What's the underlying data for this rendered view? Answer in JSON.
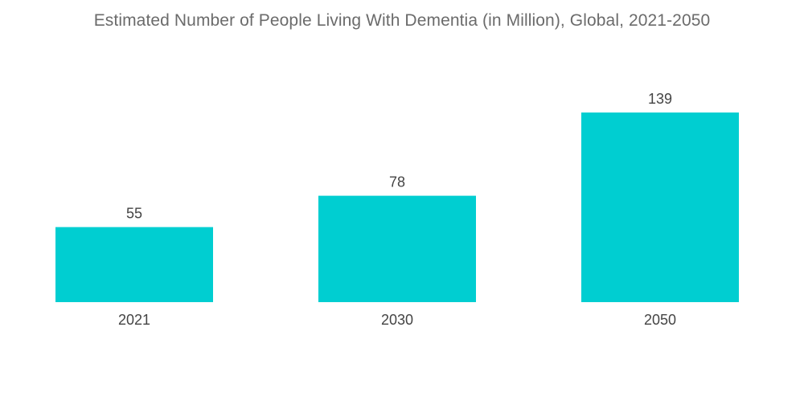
{
  "chart_data": {
    "type": "bar",
    "title": "Estimated Number of People Living With Dementia (in Million), Global, 2021-2050",
    "categories": [
      "2021",
      "2030",
      "2050"
    ],
    "values": [
      55,
      78,
      139
    ],
    "value_labels": [
      "55",
      "78",
      "139"
    ],
    "xlabel": "",
    "ylabel": "",
    "ylim": [
      0,
      139
    ],
    "grid": false,
    "legend": "none",
    "bar_color": "#00ced1"
  }
}
